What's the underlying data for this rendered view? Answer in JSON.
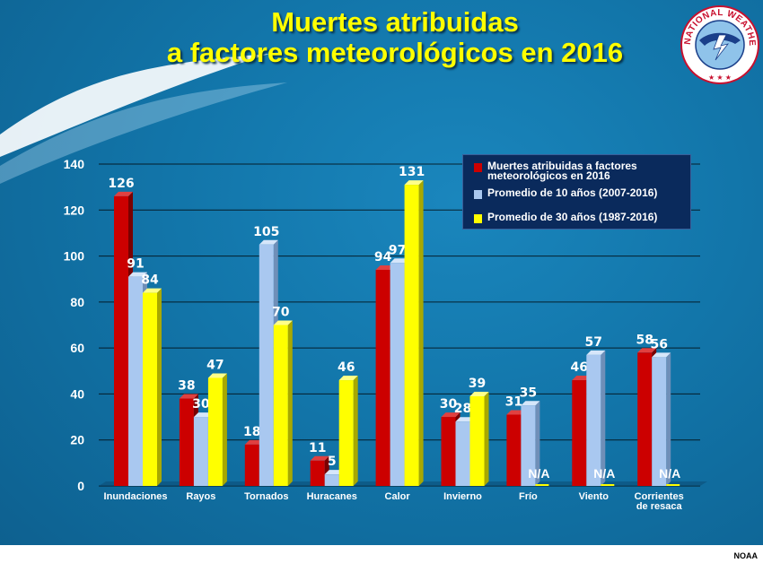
{
  "title_line1": "Muertes atribuidas",
  "title_line2": "a factores meteorológicos en 2016",
  "logo_text_top": "NATIONAL WEATHER SERVICE",
  "credit": "NOAA",
  "colors": {
    "s2016": "#cc0000",
    "s10": "#a9c8f0",
    "s30": "#ffff00",
    "background": "#1275a9",
    "legend_bg": "#0a2a5c"
  },
  "chart_data": {
    "type": "bar",
    "categories": [
      "Inundaciones",
      "Rayos",
      "Tornados",
      "Huracanes",
      "Calor",
      "Invierno",
      "Frío",
      "Viento",
      "Corrientes de resaca"
    ],
    "series": [
      {
        "name": "Muertes atribuidas a factores meteorológicos en 2016",
        "values": [
          126,
          38,
          18,
          11,
          94,
          30,
          31,
          46,
          58
        ]
      },
      {
        "name": "Promedio de 10 años (2007-2016)",
        "values": [
          91,
          30,
          105,
          5,
          97,
          28,
          35,
          57,
          56
        ]
      },
      {
        "name": "Promedio de 30 años (1987-2016)",
        "values": [
          84,
          47,
          70,
          46,
          131,
          39,
          null,
          null,
          null
        ],
        "missing_label": "N/A"
      }
    ],
    "yticks": [
      0,
      20,
      40,
      60,
      80,
      100,
      120,
      140
    ],
    "ylim": [
      0,
      140
    ],
    "grid": true,
    "legend_position": "top-right"
  }
}
